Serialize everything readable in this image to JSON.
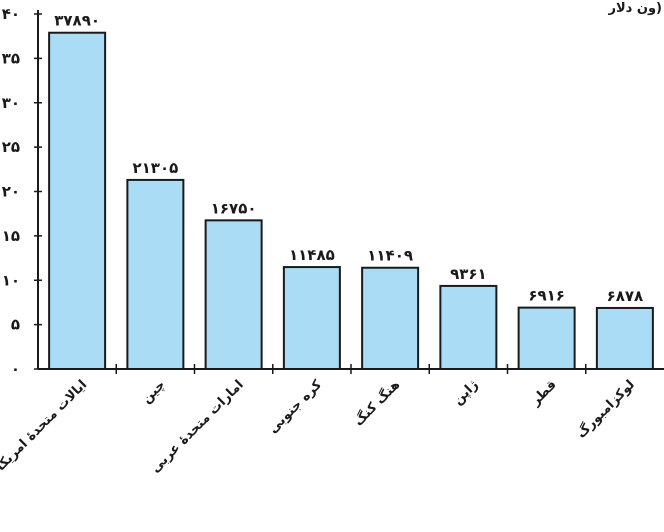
{
  "chart_data": {
    "type": "bar",
    "title": "ون دلار)",
    "xlabel": "",
    "ylabel": "",
    "ylim": [
      0,
      40
    ],
    "yticks": [
      0,
      5,
      10,
      15,
      20,
      25,
      30,
      35,
      40
    ],
    "ytick_labels": [
      "۰",
      "۵",
      "۱۰",
      "۱۵",
      "۲۰",
      "۲۵",
      "۳۰",
      "۳۵",
      "۴۰"
    ],
    "categories": [
      "ایالات متحدهٔ امریکا",
      "چین",
      "امارات متحدهٔ عربی",
      "کره جنوبی",
      "هنگ کنگ",
      "ژاپن",
      "قطر",
      "لوکزامبورگ"
    ],
    "values": [
      37.89,
      21.305,
      16.75,
      11.485,
      11.409,
      9.361,
      6.916,
      6.878
    ],
    "data_labels": [
      "۳۷۸۹۰",
      "۲۱۳۰۵",
      "۱۶۷۵۰",
      "۱۱۴۸۵",
      "۱۱۴۰۹",
      "۹۳۶۱",
      "۶۹۱۶",
      "۶۸۷۸"
    ],
    "grid": false,
    "colors": {
      "bar_fill": "#aadcf6",
      "bar_stroke": "#1a1a1a"
    }
  }
}
